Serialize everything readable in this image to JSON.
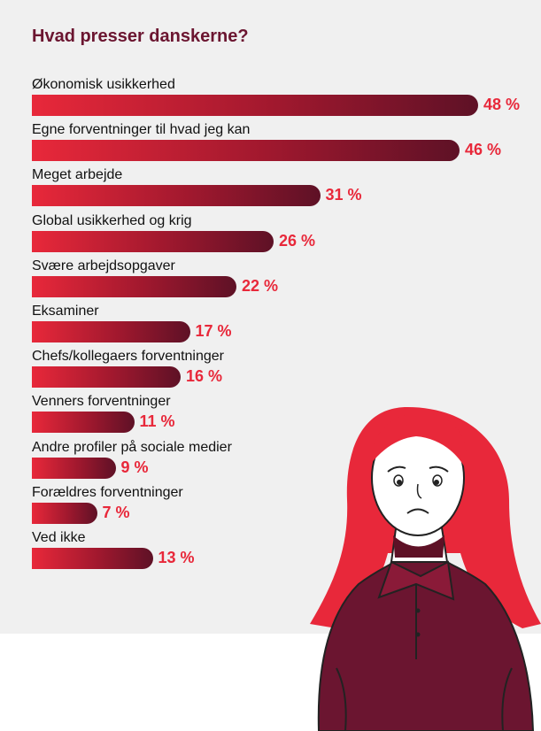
{
  "title": "Hvad presser danskerne?",
  "colors": {
    "accent": "#e8283a",
    "dark": "#5e1126",
    "title": "#6b1530",
    "panel": "#f0f0f0"
  },
  "chart_data": {
    "type": "bar",
    "orientation": "horizontal",
    "title": "Hvad presser danskerne?",
    "unit": "%",
    "categories": [
      "Økonomisk usikkerhed",
      "Egne forventninger til hvad jeg kan",
      "Meget arbejde",
      "Global usikkerhed og krig",
      "Svære arbejdsopgaver",
      "Eksaminer",
      "Chefs/kollegaers forventninger",
      "Venners forventninger",
      "Andre profiler på sociale medier",
      "Forældres forventninger",
      "Ved ikke"
    ],
    "values": [
      48,
      46,
      31,
      26,
      22,
      17,
      16,
      11,
      9,
      7,
      13
    ],
    "value_labels": [
      "48 %",
      "46 %",
      "31 %",
      "26 %",
      "22 %",
      "17 %",
      "16 %",
      "11 %",
      "9 %",
      "7 %",
      "13 %"
    ],
    "xlim": [
      0,
      48
    ],
    "grid": false
  }
}
